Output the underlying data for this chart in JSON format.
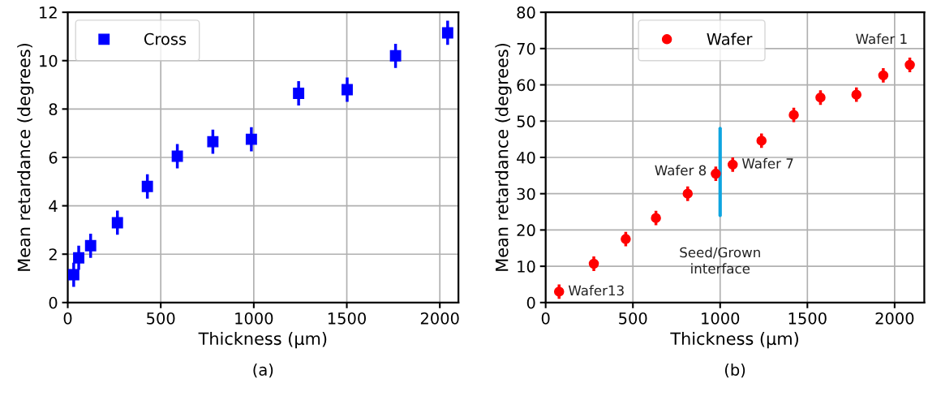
{
  "chart_data": [
    {
      "type": "scatter",
      "xlabel": "Thickness (µm)",
      "ylabel": "Mean retardance (degrees)",
      "xlim": [
        0,
        2100
      ],
      "xticks": [
        0,
        500,
        1000,
        1500,
        2000
      ],
      "ylim": [
        0,
        12
      ],
      "yticks": [
        0,
        2,
        4,
        6,
        8,
        10,
        12
      ],
      "grid": true,
      "legend": "top left",
      "marker": "square",
      "annotations": [
        "(a)"
      ],
      "series": [
        {
          "name": "Cross",
          "color": "#0000ff",
          "x": [
            32,
            59,
            123,
            267,
            428,
            589,
            780,
            987,
            1241,
            1502,
            1762,
            2042
          ],
          "values": [
            1.15,
            1.85,
            2.35,
            3.3,
            4.8,
            6.05,
            6.65,
            6.75,
            8.65,
            8.8,
            10.2,
            11.15
          ],
          "errors": [
            0.5,
            0.5,
            0.5,
            0.5,
            0.5,
            0.5,
            0.5,
            0.5,
            0.5,
            0.5,
            0.5,
            0.5
          ]
        }
      ]
    },
    {
      "type": "scatter",
      "xlabel": "Thickness (µm)",
      "ylabel": "Mean retardance (degrees)",
      "xlim": [
        0,
        2170
      ],
      "xticks": [
        0,
        500,
        1000,
        1500,
        2000
      ],
      "ylim": [
        0,
        80
      ],
      "yticks": [
        0,
        10,
        20,
        30,
        40,
        50,
        60,
        70,
        80
      ],
      "grid": true,
      "legend": "top",
      "annotations": [
        {
          "text": "Wafer13",
          "x": 77,
          "y": 3
        },
        {
          "text": "Wafer 8",
          "x": 975,
          "y": 35.5
        },
        {
          "text": "Wafer 7",
          "x": 1072,
          "y": 38
        },
        {
          "text": "Wafer 1",
          "x": 2087,
          "y": 65.5
        },
        {
          "text": "Seed/Grown\ninterface",
          "x": 1000,
          "y": 24
        },
        "(b)"
      ],
      "series": [
        {
          "name": "Wafer",
          "color": "#ff0000",
          "marker": "circle",
          "x": [
            77,
            276,
            459,
            632,
            814,
            975,
            1072,
            1237,
            1422,
            1575,
            1781,
            1935,
            2087
          ],
          "values": [
            3,
            10.7,
            17.5,
            23.3,
            30,
            35.5,
            38,
            44.6,
            51.7,
            56.5,
            57.3,
            62.6,
            65.5
          ],
          "errors": [
            2,
            2,
            2,
            2,
            2,
            2,
            2,
            2,
            2,
            2,
            2,
            2,
            2
          ]
        },
        {
          "type": "line",
          "color": "#0ea5e0",
          "x": [
            1000,
            1000
          ],
          "values": [
            24,
            48
          ]
        }
      ]
    }
  ]
}
